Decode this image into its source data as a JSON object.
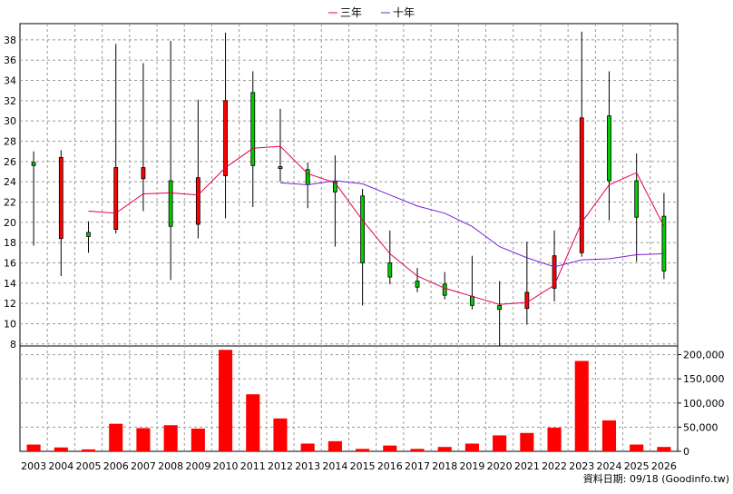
{
  "chart_data": {
    "type": "candlestick",
    "legend": [
      {
        "name": "三年",
        "color": "#e0004f"
      },
      {
        "name": "十年",
        "color": "#7a1fd6"
      }
    ],
    "legend_position": "top-center",
    "grid": true,
    "years": [
      "2003",
      "2004",
      "2005",
      "2006",
      "2007",
      "2008",
      "2009",
      "2010",
      "2011",
      "2012",
      "2013",
      "2014",
      "2015",
      "2016",
      "2017",
      "2018",
      "2019",
      "2020",
      "2021",
      "2022",
      "2023",
      "2024",
      "2025",
      "2026"
    ],
    "price_axis": {
      "ticks": [
        8,
        10,
        12,
        14,
        16,
        18,
        20,
        22,
        24,
        26,
        28,
        30,
        32,
        34,
        36,
        38
      ],
      "range": [
        7.8,
        39.6
      ]
    },
    "volume_axis": {
      "ticks": [
        0,
        50000,
        100000,
        150000,
        200000
      ],
      "tick_labels": [
        "0",
        "50,000",
        "100,000",
        "150,000",
        "200,000"
      ],
      "range": [
        0,
        218000
      ]
    },
    "candles": [
      {
        "year": "2003",
        "open": 25.9,
        "close": 25.6,
        "high": 27.0,
        "low": 17.7
      },
      {
        "year": "2004",
        "open": 18.4,
        "close": 26.4,
        "high": 27.1,
        "low": 14.7
      },
      {
        "year": "2005",
        "open": 19.0,
        "close": 18.6,
        "high": 20.1,
        "low": 17.0
      },
      {
        "year": "2006",
        "open": 19.3,
        "close": 25.4,
        "high": 37.6,
        "low": 18.9
      },
      {
        "year": "2007",
        "open": 24.3,
        "close": 25.4,
        "high": 35.7,
        "low": 21.1
      },
      {
        "year": "2008",
        "open": 24.1,
        "close": 19.6,
        "high": 37.9,
        "low": 14.3
      },
      {
        "year": "2009",
        "open": 19.8,
        "close": 24.4,
        "high": 32.1,
        "low": 18.4
      },
      {
        "year": "2010",
        "open": 24.6,
        "close": 32.0,
        "high": 38.7,
        "low": 20.4
      },
      {
        "year": "2011",
        "open": 32.8,
        "close": 25.6,
        "high": 34.9,
        "low": 21.5
      },
      {
        "year": "2012",
        "open": 25.5,
        "close": 25.3,
        "high": 31.2,
        "low": 24.0
      },
      {
        "year": "2013",
        "open": 25.2,
        "close": 23.7,
        "high": 25.9,
        "low": 21.4
      },
      {
        "year": "2014",
        "open": 24.0,
        "close": 23.0,
        "high": 26.6,
        "low": 17.6
      },
      {
        "year": "2015",
        "open": 22.6,
        "close": 16.0,
        "high": 23.3,
        "low": 11.8
      },
      {
        "year": "2016",
        "open": 16.0,
        "close": 14.6,
        "high": 19.2,
        "low": 13.9
      },
      {
        "year": "2017",
        "open": 14.2,
        "close": 13.6,
        "high": 15.5,
        "low": 13.1
      },
      {
        "year": "2018",
        "open": 13.9,
        "close": 12.8,
        "high": 15.1,
        "low": 12.4
      },
      {
        "year": "2019",
        "open": 12.7,
        "close": 11.8,
        "high": 16.7,
        "low": 11.4
      },
      {
        "year": "2020",
        "open": 11.8,
        "close": 11.4,
        "high": 14.2,
        "low": 7.8
      },
      {
        "year": "2021",
        "open": 11.5,
        "close": 13.1,
        "high": 18.1,
        "low": 9.9
      },
      {
        "year": "2022",
        "open": 13.5,
        "close": 16.7,
        "high": 19.2,
        "low": 12.2
      },
      {
        "year": "2023",
        "open": 17.0,
        "close": 30.3,
        "high": 38.8,
        "low": 16.6
      },
      {
        "year": "2024",
        "open": 30.5,
        "close": 24.1,
        "high": 34.9,
        "low": 20.2
      },
      {
        "year": "2025",
        "open": 24.1,
        "close": 20.5,
        "high": 26.8,
        "low": 16.1
      },
      {
        "year": "2026",
        "open": 20.6,
        "close": 15.2,
        "high": 22.9,
        "low": 14.4
      }
    ],
    "series": [
      {
        "name": "三年",
        "x": [
          "2005",
          "2006",
          "2007",
          "2008",
          "2009",
          "2010",
          "2011",
          "2012",
          "2013",
          "2014",
          "2015",
          "2016",
          "2017",
          "2018",
          "2019",
          "2020",
          "2021",
          "2022",
          "2023",
          "2024",
          "2025",
          "2026"
        ],
        "values": [
          21.1,
          20.9,
          22.8,
          22.9,
          22.7,
          25.4,
          27.3,
          27.5,
          24.8,
          23.9,
          20.2,
          16.9,
          14.7,
          13.5,
          12.7,
          11.9,
          12.1,
          13.8,
          20.0,
          23.7,
          24.9,
          19.6
        ]
      },
      {
        "name": "十年",
        "x": [
          "2012",
          "2013",
          "2014",
          "2015",
          "2016",
          "2017",
          "2018",
          "2019",
          "2020",
          "2021",
          "2022",
          "2023",
          "2024",
          "2025",
          "2026"
        ],
        "values": [
          23.9,
          23.7,
          24.1,
          23.8,
          22.7,
          21.6,
          20.9,
          19.6,
          17.6,
          16.5,
          15.6,
          16.3,
          16.4,
          16.8,
          16.9
        ]
      }
    ],
    "volumes": [
      14000,
      8000,
      4000,
      57000,
      48000,
      54000,
      47000,
      210000,
      118000,
      68000,
      16000,
      21000,
      5000,
      12000,
      5000,
      9000,
      16000,
      33000,
      38000,
      49000,
      187000,
      64000,
      14000,
      9000
    ],
    "source": "資料日期: 09/18  (Goodinfo.tw)"
  }
}
